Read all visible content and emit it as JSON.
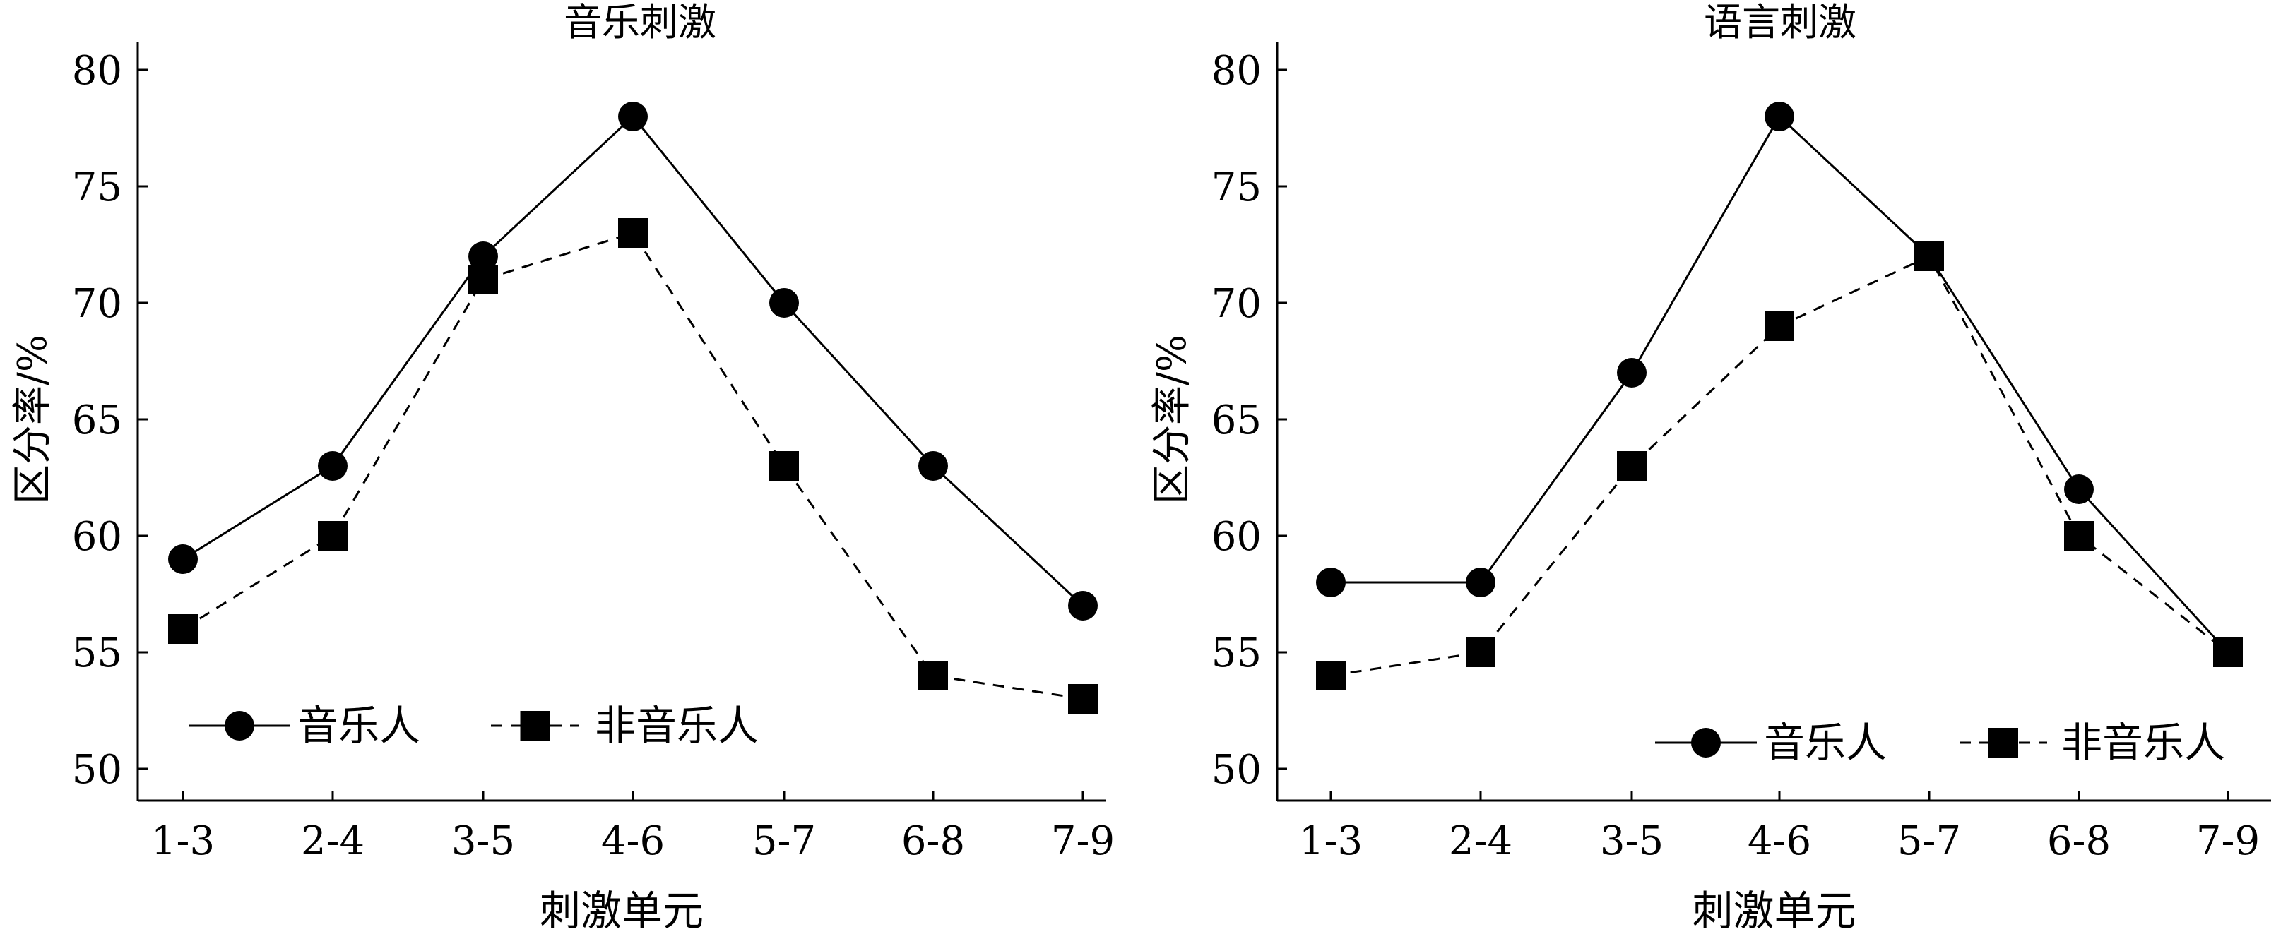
{
  "chart_data": [
    {
      "type": "line",
      "title": "音乐刺激",
      "xlabel": "刺激单元",
      "ylabel": "区分率/%",
      "categories": [
        "1-3",
        "2-4",
        "3-5",
        "4-6",
        "5-7",
        "6-8",
        "7-9"
      ],
      "ylim": [
        50,
        80
      ],
      "yticks": [
        50,
        55,
        60,
        65,
        70,
        75,
        80
      ],
      "grid": false,
      "legend_placement": "bottom-left",
      "series": [
        {
          "name": "音乐人",
          "marker": "circle",
          "line": "solid",
          "values": [
            59,
            63,
            72,
            78,
            70,
            63,
            57
          ]
        },
        {
          "name": "非音乐人",
          "marker": "square",
          "line": "dashed",
          "values": [
            56,
            60,
            71,
            73,
            63,
            54,
            53
          ]
        }
      ]
    },
    {
      "type": "line",
      "title": "语言刺激",
      "xlabel": "刺激单元",
      "ylabel": "区分率/%",
      "categories": [
        "1-3",
        "2-4",
        "3-5",
        "4-6",
        "5-7",
        "6-8",
        "7-9"
      ],
      "ylim": [
        50,
        80
      ],
      "yticks": [
        50,
        55,
        60,
        65,
        70,
        75,
        80
      ],
      "grid": false,
      "legend_placement": "bottom-right",
      "series": [
        {
          "name": "音乐人",
          "marker": "circle",
          "line": "solid",
          "values": [
            58,
            58,
            67,
            78,
            72,
            62,
            55
          ]
        },
        {
          "name": "非音乐人",
          "marker": "square",
          "line": "dashed",
          "values": [
            54,
            55,
            63,
            69,
            72,
            60,
            55
          ]
        }
      ]
    }
  ]
}
